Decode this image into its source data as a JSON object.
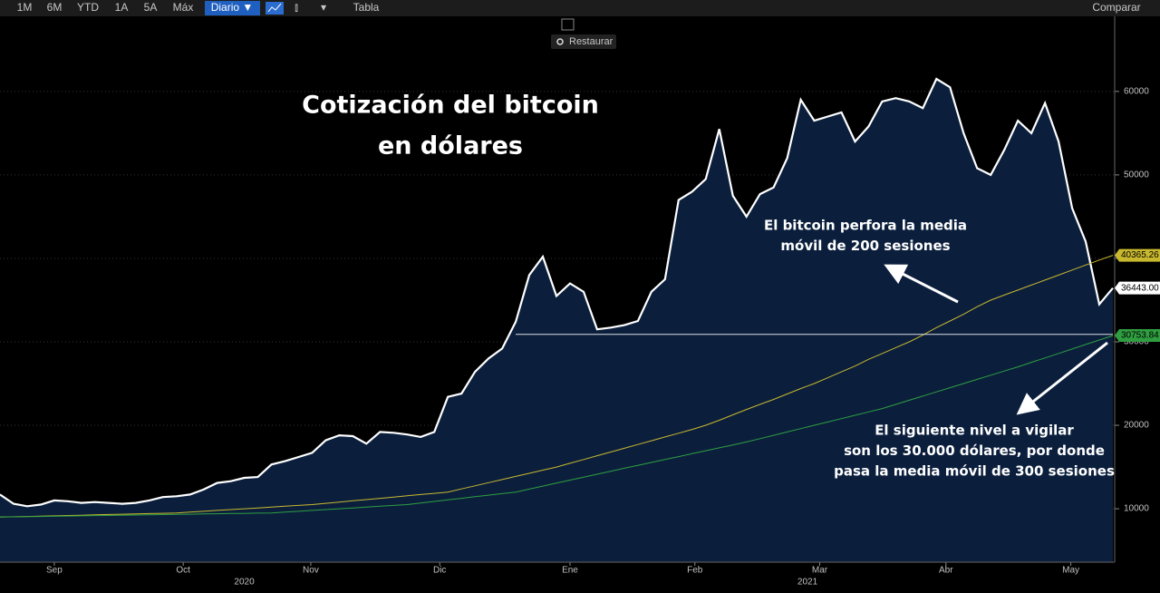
{
  "toolbar": {
    "ranges": [
      "1M",
      "6M",
      "YTD",
      "1A",
      "5A",
      "Máx"
    ],
    "interval": "Diario ▼",
    "table": "Tabla",
    "compare": "Comparar",
    "restore": "Restaurar"
  },
  "chart_data": {
    "type": "line",
    "title_lines": [
      "Cotización del bitcoin",
      "en dólares"
    ],
    "annotations": [
      {
        "lines": [
          "El bitcoin perfora la media",
          "móvil de 200 sesiones"
        ]
      },
      {
        "lines": [
          "El siguiente nivel a vigilar",
          "son los 30.000 dólares, por donde",
          "pasa la media móvil de 300 sesiones"
        ]
      }
    ],
    "xlim": [
      0,
      82
    ],
    "xticks": [
      {
        "value": 4,
        "label": "Sep"
      },
      {
        "value": 13.5,
        "label": "Oct"
      },
      {
        "value": 22.9,
        "label": "Nov"
      },
      {
        "value": 32.4,
        "label": "Dic"
      },
      {
        "value": 42,
        "label": "Ene"
      },
      {
        "value": 51.2,
        "label": "Feb"
      },
      {
        "value": 60.4,
        "label": "Mar"
      },
      {
        "value": 69.7,
        "label": "Abr"
      },
      {
        "value": 78.9,
        "label": "May"
      }
    ],
    "year_ticks": [
      {
        "value": 18,
        "label": "2020"
      },
      {
        "value": 59.5,
        "label": "2021"
      }
    ],
    "ylim": [
      3600,
      69000
    ],
    "yticks": [
      10000,
      20000,
      30000,
      40000,
      50000,
      60000
    ],
    "level": {
      "value": 30900,
      "from_index": 38
    },
    "series": [
      {
        "color": "#ffffff",
        "area": true,
        "last_value_label": "36443.00",
        "values": [
          11700,
          10600,
          10300,
          10500,
          11000,
          10900,
          10700,
          10800,
          10700,
          10600,
          10700,
          11000,
          11400,
          11500,
          11700,
          12300,
          13100,
          13300,
          13700,
          13800,
          15300,
          15700,
          16200,
          16700,
          18200,
          18800,
          18700,
          17800,
          19200,
          19100,
          18900,
          18600,
          19200,
          23400,
          23800,
          26400,
          28000,
          29200,
          32400,
          38000,
          40200,
          35500,
          37000,
          36000,
          31500,
          31700,
          32000,
          32500,
          36000,
          37500,
          47000,
          48000,
          49500,
          55500,
          47500,
          45000,
          47700,
          48500,
          52000,
          59000,
          56500,
          57000,
          57500,
          54000,
          55800,
          58800,
          59200,
          58800,
          58000,
          61500,
          60500,
          55000,
          50800,
          50000,
          53000,
          56500,
          55000,
          58600,
          54000,
          46000,
          42000,
          34500,
          36443
        ]
      },
      {
        "color": "#c8b82e",
        "area": false,
        "last_value_label": "40365.26",
        "values": [
          9000,
          9040,
          9080,
          9120,
          9150,
          9190,
          9230,
          9270,
          9310,
          9350,
          9380,
          9420,
          9460,
          9500,
          9600,
          9700,
          9800,
          9900,
          10000,
          10100,
          10200,
          10300,
          10400,
          10500,
          10650,
          10800,
          10950,
          11100,
          11250,
          11400,
          11550,
          11700,
          11850,
          12000,
          12380,
          12750,
          13130,
          13500,
          13880,
          14250,
          14630,
          15000,
          15450,
          15900,
          16350,
          16800,
          17250,
          17700,
          18150,
          18600,
          19050,
          19500,
          20000,
          20600,
          21250,
          21900,
          22500,
          23100,
          23750,
          24400,
          25000,
          25700,
          26400,
          27100,
          27900,
          28600,
          29300,
          30000,
          30800,
          31700,
          32500,
          33300,
          34200,
          35000,
          35600,
          36200,
          36800,
          37400,
          38000,
          38600,
          39200,
          39800,
          40365.26
        ]
      },
      {
        "color": "#2f9e40",
        "area": false,
        "last_value_label": "30753.84",
        "values": [
          9000,
          9030,
          9050,
          9080,
          9100,
          9130,
          9150,
          9180,
          9200,
          9230,
          9250,
          9280,
          9300,
          9330,
          9350,
          9380,
          9400,
          9430,
          9450,
          9480,
          9500,
          9600,
          9700,
          9800,
          9900,
          10000,
          10100,
          10200,
          10300,
          10400,
          10500,
          10690,
          10880,
          11060,
          11250,
          11440,
          11630,
          11810,
          12000,
          12360,
          12710,
          13070,
          13430,
          13790,
          14140,
          14500,
          14850,
          15200,
          15550,
          15900,
          16250,
          16600,
          16950,
          17300,
          17650,
          18000,
          18400,
          18800,
          19200,
          19600,
          20000,
          20400,
          20800,
          21200,
          21600,
          22000,
          22500,
          23000,
          23500,
          24000,
          24500,
          25000,
          25500,
          26000,
          26500,
          27000,
          27540,
          28070,
          28610,
          29140,
          29680,
          30220,
          30753.84
        ]
      }
    ]
  }
}
